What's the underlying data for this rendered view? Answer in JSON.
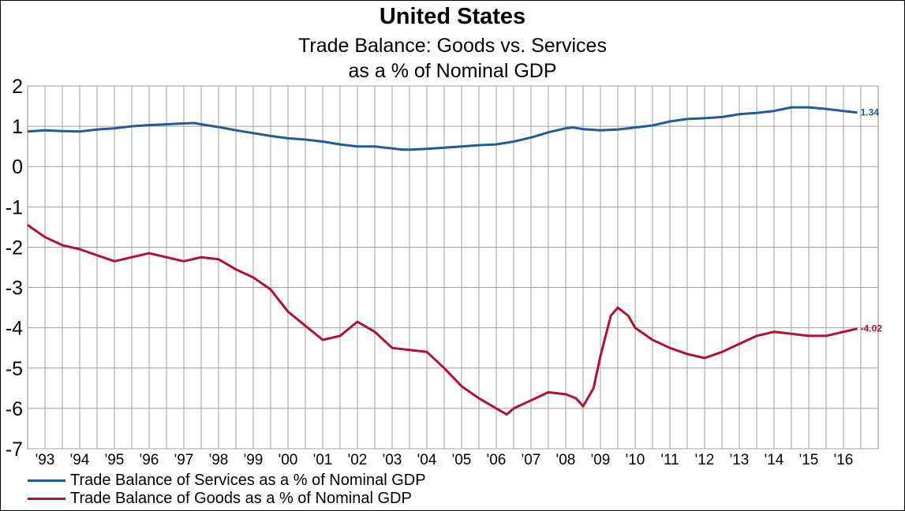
{
  "title": "United States",
  "subtitle_line1": "Trade Balance: Goods vs. Services",
  "subtitle_line2": "as a % of Nominal GDP",
  "colors": {
    "services": "#1f5c99",
    "goods": "#b0122f",
    "grid": "#a0a0a0"
  },
  "chart_data": {
    "type": "line",
    "title": "United States",
    "subtitle": "Trade Balance: Goods vs. Services as a % of Nominal GDP",
    "xlabel": "",
    "ylabel": "",
    "ylim": [
      -7,
      2
    ],
    "yticks": [
      2,
      1,
      0,
      -1,
      -2,
      -3,
      -4,
      -5,
      -6,
      -7
    ],
    "ytick_labels": [
      "2",
      "1",
      "0",
      "-1",
      "-2",
      "-3",
      "-4",
      "-5",
      "-6",
      "-7"
    ],
    "xlim": [
      1992.5,
      2017.0
    ],
    "xtick_labels": [
      "'93",
      "'94",
      "'95",
      "'96",
      "'97",
      "'98",
      "'99",
      "'00",
      "'01",
      "'02",
      "'03",
      "'04",
      "'05",
      "'06",
      "'07",
      "'08",
      "'09",
      "'10",
      "'11",
      "'12",
      "'13",
      "'14",
      "'15",
      "'16"
    ],
    "grid": true,
    "legend_position": "bottom-left",
    "series": [
      {
        "name": "Trade Balance of Services as a % of Nominal GDP",
        "end_label": "1.34",
        "x": [
          1992.5,
          1993.0,
          1993.5,
          1994.0,
          1994.5,
          1995.0,
          1995.5,
          1996.0,
          1996.5,
          1997.0,
          1997.3,
          1997.5,
          1998.0,
          1998.5,
          1999.0,
          1999.5,
          2000.0,
          2000.5,
          2001.0,
          2001.5,
          2002.0,
          2002.5,
          2003.0,
          2003.3,
          2003.5,
          2004.0,
          2004.5,
          2005.0,
          2005.5,
          2006.0,
          2006.5,
          2007.0,
          2007.5,
          2008.0,
          2008.2,
          2008.5,
          2009.0,
          2009.5,
          2010.0,
          2010.5,
          2011.0,
          2011.5,
          2012.0,
          2012.5,
          2013.0,
          2013.5,
          2014.0,
          2014.5,
          2015.0,
          2015.5,
          2016.0,
          2016.4
        ],
        "values": [
          0.87,
          0.9,
          0.88,
          0.87,
          0.92,
          0.95,
          1.0,
          1.03,
          1.05,
          1.07,
          1.08,
          1.05,
          0.98,
          0.9,
          0.83,
          0.76,
          0.7,
          0.67,
          0.62,
          0.55,
          0.5,
          0.5,
          0.45,
          0.42,
          0.42,
          0.44,
          0.47,
          0.5,
          0.53,
          0.55,
          0.62,
          0.72,
          0.85,
          0.95,
          0.97,
          0.93,
          0.9,
          0.92,
          0.97,
          1.02,
          1.12,
          1.18,
          1.2,
          1.23,
          1.3,
          1.33,
          1.38,
          1.47,
          1.47,
          1.43,
          1.38,
          1.34
        ]
      },
      {
        "name": "Trade Balance of Goods as a % of Nominal GDP",
        "end_label": "-4.02",
        "x": [
          1992.5,
          1993.0,
          1993.5,
          1994.0,
          1994.5,
          1995.0,
          1995.5,
          1996.0,
          1996.5,
          1997.0,
          1997.5,
          1998.0,
          1998.5,
          1999.0,
          1999.5,
          2000.0,
          2000.5,
          2001.0,
          2001.5,
          2002.0,
          2002.5,
          2003.0,
          2003.5,
          2004.0,
          2004.5,
          2005.0,
          2005.5,
          2006.0,
          2006.3,
          2006.5,
          2007.0,
          2007.5,
          2008.0,
          2008.3,
          2008.5,
          2008.8,
          2009.0,
          2009.3,
          2009.5,
          2009.8,
          2010.0,
          2010.5,
          2011.0,
          2011.5,
          2012.0,
          2012.5,
          2013.0,
          2013.5,
          2014.0,
          2014.5,
          2015.0,
          2015.5,
          2016.0,
          2016.4
        ],
        "values": [
          -1.45,
          -1.75,
          -1.95,
          -2.05,
          -2.2,
          -2.35,
          -2.25,
          -2.15,
          -2.25,
          -2.35,
          -2.25,
          -2.3,
          -2.55,
          -2.75,
          -3.05,
          -3.6,
          -3.95,
          -4.3,
          -4.2,
          -3.85,
          -4.1,
          -4.5,
          -4.55,
          -4.6,
          -5.0,
          -5.45,
          -5.75,
          -6.0,
          -6.15,
          -6.0,
          -5.8,
          -5.6,
          -5.65,
          -5.75,
          -5.95,
          -5.5,
          -4.7,
          -3.7,
          -3.5,
          -3.7,
          -4.0,
          -4.3,
          -4.5,
          -4.65,
          -4.75,
          -4.6,
          -4.4,
          -4.2,
          -4.1,
          -4.15,
          -4.2,
          -4.2,
          -4.1,
          -4.02
        ]
      }
    ]
  }
}
